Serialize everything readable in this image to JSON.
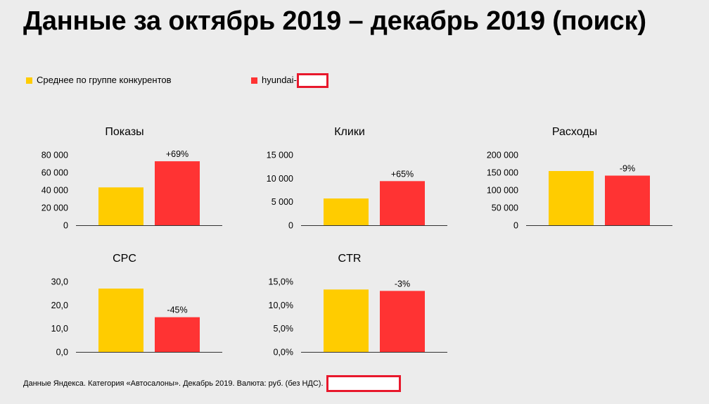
{
  "slide": {
    "title": "Данные за октябрь 2019 – декабрь 2019 (поиск)",
    "footnote": "Данные Яндекса. Категория «Автосалоны». Декабрь 2019. Валюта: руб. (без НДС).",
    "legend": {
      "group_label": "Среднее по группе конкурентов",
      "brand_label": "hyundai-"
    }
  },
  "colors": {
    "group": "#ffcc00",
    "brand": "#ff3333",
    "background": "#ececec",
    "redact_border": "#e8182c"
  },
  "chart_data": [
    {
      "type": "bar",
      "title": "Показы",
      "categories": [
        "Среднее по группе конкурентов",
        "hyundai-"
      ],
      "values": [
        43000,
        72700
      ],
      "ylim": [
        0,
        80000
      ],
      "yticks": [
        "80 000",
        "60 000",
        "40 000",
        "20 000",
        "0"
      ],
      "ytick_values": [
        80000,
        60000,
        40000,
        20000,
        0
      ],
      "annotation": "+69%",
      "grid": false
    },
    {
      "type": "bar",
      "title": "Клики",
      "categories": [
        "Среднее по группе конкурентов",
        "hyundai-"
      ],
      "values": [
        5700,
        9400
      ],
      "ylim": [
        0,
        15000
      ],
      "yticks": [
        "15 000",
        "10 000",
        "5 000",
        "0"
      ],
      "ytick_values": [
        15000,
        10000,
        5000,
        0
      ],
      "annotation": "+65%",
      "grid": false
    },
    {
      "type": "bar",
      "title": "Расходы",
      "categories": [
        "Среднее по группе конкурентов",
        "hyundai-"
      ],
      "values": [
        154000,
        141000
      ],
      "ylim": [
        0,
        200000
      ],
      "yticks": [
        "200 000",
        "150 000",
        "100 000",
        "50 000",
        "0"
      ],
      "ytick_values": [
        200000,
        150000,
        100000,
        50000,
        0
      ],
      "annotation": "-9%",
      "grid": false
    },
    {
      "type": "bar",
      "title": "CPC",
      "categories": [
        "Среднее по группе конкурентов",
        "hyundai-"
      ],
      "values": [
        27.0,
        14.8
      ],
      "ylim": [
        0,
        30
      ],
      "yticks": [
        "30,0",
        "20,0",
        "10,0",
        "0,0"
      ],
      "ytick_values": [
        30,
        20,
        10,
        0
      ],
      "annotation": "-45%",
      "grid": false
    },
    {
      "type": "bar",
      "title": "CTR",
      "categories": [
        "Среднее по группе конкурентов",
        "hyundai-"
      ],
      "values": [
        13.3,
        13.0
      ],
      "ylim": [
        0,
        15
      ],
      "yticks": [
        "15,0%",
        "10,0%",
        "5,0%",
        "0,0%"
      ],
      "ytick_values": [
        15,
        10,
        5,
        0
      ],
      "annotation": "-3%",
      "grid": false
    }
  ]
}
